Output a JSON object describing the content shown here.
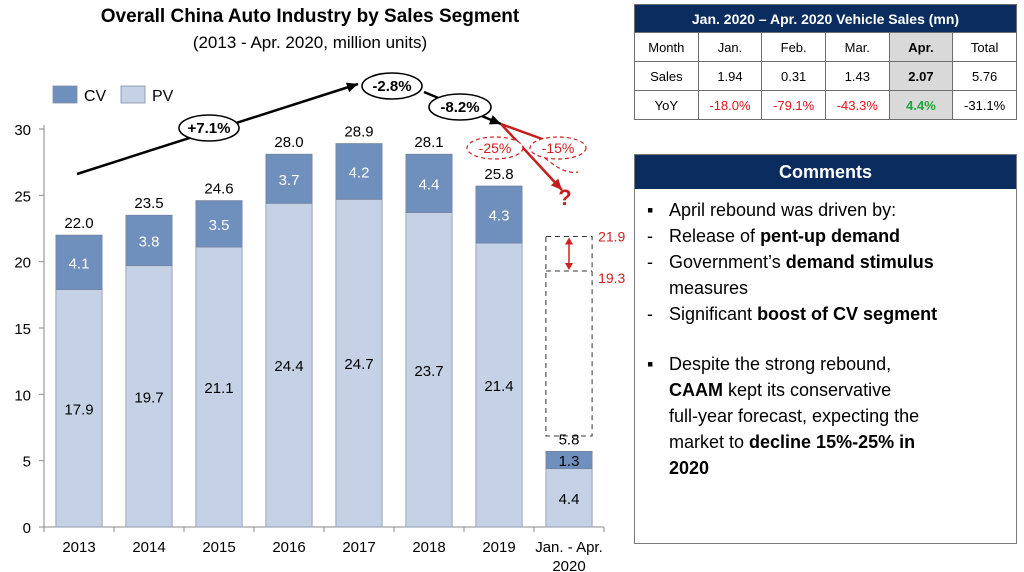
{
  "chart_data": {
    "type": "bar",
    "stacked": true,
    "title": "Overall China Auto Industry by Sales Segment",
    "subtitle": "(2013 - Apr. 2020, million units)",
    "categories": [
      "2013",
      "2014",
      "2015",
      "2016",
      "2017",
      "2018",
      "2019",
      "Jan. - Apr.|2020"
    ],
    "series": [
      {
        "name": "PV",
        "color": "#c5d2e6",
        "values": [
          17.9,
          19.7,
          21.1,
          24.4,
          24.7,
          23.7,
          21.4,
          4.4
        ],
        "labels": [
          "17.9",
          "19.7",
          "21.1",
          "24.4",
          "24.7",
          "23.7",
          "21.4",
          "4.4"
        ]
      },
      {
        "name": "CV",
        "color": "#6f8fbd",
        "values": [
          4.1,
          3.8,
          3.5,
          3.7,
          4.2,
          4.4,
          4.3,
          1.3
        ],
        "labels": [
          "4.1",
          "3.8",
          "3.5",
          "3.7",
          "4.2",
          "4.4",
          "4.3",
          "1.3"
        ]
      }
    ],
    "totals": [
      22.0,
      23.5,
      24.6,
      28.0,
      28.9,
      28.1,
      25.8,
      5.8
    ],
    "total_labels": [
      "22.0",
      "23.5",
      "24.6",
      "28.0",
      "28.9",
      "28.1",
      "25.8",
      "5.8"
    ],
    "ylim": [
      0,
      30
    ],
    "yticks": [
      0,
      5,
      10,
      15,
      20,
      25,
      30
    ],
    "ytick_labels": [
      "0",
      "5",
      "10",
      "15",
      "20",
      "25",
      "30"
    ],
    "legend_position": "top-left",
    "grid": false,
    "forecast": {
      "low": 19.3,
      "high": 21.9,
      "low_label": "19.3",
      "high_label": "21.9",
      "question": "?"
    },
    "growth_annotations": [
      {
        "label": "+7.1%",
        "from": "2013",
        "to": "2017"
      },
      {
        "label": "-2.8%",
        "from": "2017",
        "to": "2018"
      },
      {
        "label": "-8.2%",
        "from": "2018",
        "to": "2019"
      },
      {
        "label": "-25%",
        "style": "dashed-red"
      },
      {
        "label": "-15%",
        "style": "dashed-red"
      }
    ]
  },
  "sales_table": {
    "title": "Jan. 2020 – Apr. 2020 Vehicle Sales (mn)",
    "columns": [
      "Month",
      "Jan.",
      "Feb.",
      "Mar.",
      "Apr.",
      "Total"
    ],
    "rows": [
      {
        "label": "Sales",
        "cells": [
          "1.94",
          "0.31",
          "1.43",
          "2.07",
          "5.76"
        ]
      },
      {
        "label": "YoY",
        "cells": [
          "-18.0%",
          "-79.1%",
          "-43.3%",
          "4.4%",
          "-31.1%"
        ]
      }
    ],
    "colors": {
      "negative": "#e8101b",
      "positive": "#18a836",
      "header": "#0b2c5e"
    }
  },
  "comments": {
    "title": "Comments",
    "p1_lead": "April rebound was driven by:",
    "s1_a": "Release of ",
    "s1_b": "pent-up demand",
    "s2_a": "Government’s ",
    "s2_b": "demand stimulus",
    "s2_c": "measures",
    "s3_a": "Significant ",
    "s3_b": "boost of CV segment",
    "p2_a": "Despite the strong rebound,",
    "p2_b": "CAAM",
    "p2_c": " kept its conservative",
    "p2_d": "full-year forecast, expecting the",
    "p2_e": "market to ",
    "p2_f": "decline 15%-25% in",
    "p2_g": "2020",
    "bullet": "▪",
    "dash": "-"
  }
}
